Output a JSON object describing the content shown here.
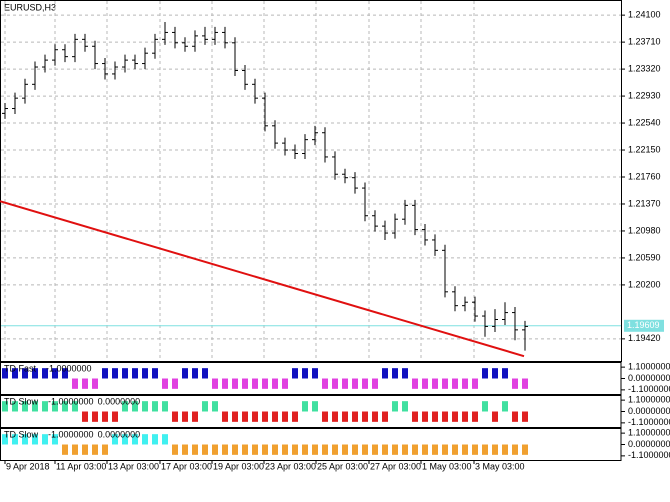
{
  "chart_data": {
    "type": "ohlc",
    "title": "EURUSD,H3",
    "color": "#000000",
    "grid": true,
    "open": [
      1.2268,
      1.2275,
      1.229,
      1.231,
      1.2335,
      1.2345,
      1.236,
      1.235,
      1.2375,
      1.2365,
      1.234,
      1.2325,
      1.2335,
      1.2345,
      1.234,
      1.2355,
      1.2375,
      1.2385,
      1.237,
      1.2365,
      1.238,
      1.2375,
      1.2385,
      1.237,
      1.233,
      1.231,
      1.229,
      1.225,
      1.2225,
      1.2215,
      1.221,
      1.223,
      1.224,
      1.2205,
      1.218,
      1.2175,
      1.216,
      1.212,
      1.2105,
      1.2095,
      1.2115,
      1.2135,
      1.21,
      1.2085,
      1.207,
      1.201,
      1.199,
      1.1995,
      1.1975,
      1.196,
      1.197,
      1.198,
      1.1955
    ],
    "high": [
      1.2283,
      1.2298,
      1.2318,
      1.2343,
      1.2353,
      1.2368,
      1.2368,
      1.2383,
      1.2383,
      1.2373,
      1.2348,
      1.2343,
      1.2353,
      1.2353,
      1.2363,
      1.2383,
      1.24,
      1.2393,
      1.2378,
      1.2388,
      1.2393,
      1.2393,
      1.2393,
      1.2378,
      1.2338,
      1.2318,
      1.2298,
      1.2258,
      1.2233,
      1.2223,
      1.2238,
      1.225,
      1.2248,
      1.2213,
      1.2188,
      1.2183,
      1.2168,
      1.2128,
      1.2113,
      1.2123,
      1.2143,
      1.2143,
      1.2108,
      1.2093,
      1.2078,
      1.2018,
      1.2003,
      1.2003,
      1.1983,
      1.1985,
      1.1995,
      1.1988,
      1.1968
    ],
    "low": [
      1.226,
      1.2267,
      1.2282,
      1.2302,
      1.2327,
      1.2337,
      1.2342,
      1.2342,
      1.2357,
      1.2332,
      1.2317,
      1.2317,
      1.2327,
      1.2332,
      1.2332,
      1.2347,
      1.2367,
      1.2362,
      1.2357,
      1.2357,
      1.2367,
      1.2367,
      1.2362,
      1.2322,
      1.2302,
      1.2282,
      1.2242,
      1.2217,
      1.2207,
      1.2202,
      1.2202,
      1.2222,
      1.2197,
      1.2172,
      1.2167,
      1.2152,
      1.2112,
      1.2097,
      1.2085,
      1.2087,
      1.2107,
      1.2092,
      1.2077,
      1.2062,
      1.2002,
      1.1982,
      1.1982,
      1.1967,
      1.1945,
      1.1952,
      1.1962,
      1.194,
      1.1925
    ],
    "close": [
      1.2275,
      1.229,
      1.231,
      1.2335,
      1.2345,
      1.236,
      1.235,
      1.2375,
      1.2365,
      1.234,
      1.2325,
      1.2335,
      1.2345,
      1.234,
      1.2355,
      1.2375,
      1.2385,
      1.237,
      1.2365,
      1.238,
      1.2375,
      1.2385,
      1.237,
      1.233,
      1.231,
      1.229,
      1.225,
      1.2225,
      1.2215,
      1.221,
      1.223,
      1.224,
      1.2205,
      1.218,
      1.2175,
      1.216,
      1.212,
      1.2105,
      1.2095,
      1.2115,
      1.2135,
      1.21,
      1.2085,
      1.207,
      1.201,
      1.199,
      1.1995,
      1.1975,
      1.196,
      1.197,
      1.198,
      1.1955,
      1.196
    ],
    "xlim": [
      -0.5,
      61.2
    ],
    "xticks": [
      {
        "value": 0,
        "label": "9 Apr 2018"
      },
      {
        "value": 5,
        "label": "11 Apr 03:00"
      },
      {
        "value": 10.2,
        "label": "13 Apr 03:00"
      },
      {
        "value": 15.5,
        "label": "17 Apr 03:00"
      },
      {
        "value": 20.7,
        "label": "19 Apr 03:00"
      },
      {
        "value": 25.9,
        "label": "23 Apr 03:00"
      },
      {
        "value": 31.1,
        "label": "25 Apr 03:00"
      },
      {
        "value": 36.4,
        "label": "27 Apr 03:00"
      },
      {
        "value": 41.6,
        "label": "1 May 03:00"
      },
      {
        "value": 46.9,
        "label": "3 May 03:00"
      }
    ],
    "ylim": [
      1.191,
      1.2429
    ],
    "yticks": [
      {
        "value": 1.241,
        "label": "1.24100"
      },
      {
        "value": 1.2371,
        "label": "1.23710"
      },
      {
        "value": 1.2332,
        "label": "1.23320"
      },
      {
        "value": 1.2293,
        "label": "1.22930"
      },
      {
        "value": 1.2254,
        "label": "1.22540"
      },
      {
        "value": 1.2215,
        "label": "1.22150"
      },
      {
        "value": 1.2176,
        "label": "1.21760"
      },
      {
        "value": 1.2137,
        "label": "1.21370"
      },
      {
        "value": 1.2098,
        "label": "1.20980"
      },
      {
        "value": 1.2059,
        "label": "1.20590"
      },
      {
        "value": 1.202,
        "label": "1.20200"
      },
      {
        "value": 1.1942,
        "label": "1.19420"
      }
    ],
    "current_price": {
      "value": 1.19609,
      "label": "1.19609",
      "color": "#7fe0e0"
    },
    "trendline": {
      "x": [
        -0.5,
        51.9
      ],
      "y": [
        1.2141,
        1.1917
      ],
      "color": "#e01010"
    },
    "indicators": [
      {
        "label": "TD Fast",
        "readouts": [
          "-1.0000000"
        ],
        "up_color": "#1010c0",
        "down_color": "#e040e0",
        "ylim": [
          -1.5,
          1.5
        ],
        "yticks": [
          {
            "value": 1.1,
            "label": "1.1000000"
          },
          {
            "value": 0,
            "label": "0.0000000"
          },
          {
            "value": -1.1,
            "label": "-1.1000000"
          }
        ],
        "values": [
          1,
          1,
          1,
          1,
          1,
          1,
          1,
          -1,
          -1,
          -1,
          1,
          1,
          1,
          1,
          1,
          1,
          -1,
          -1,
          1,
          1,
          1,
          -1,
          -1,
          -1,
          -1,
          -1,
          -1,
          -1,
          -1,
          1,
          1,
          1,
          -1,
          -1,
          -1,
          -1,
          -1,
          -1,
          1,
          1,
          1,
          -1,
          -1,
          -1,
          -1,
          -1,
          -1,
          -1,
          1,
          1,
          1,
          -1,
          -1
        ]
      },
      {
        "label": "TD Slow",
        "readouts": [
          "-1.0000000",
          "0.0000000"
        ],
        "up_color": "#40e0a0",
        "down_color": "#e02020",
        "ylim": [
          -1.5,
          1.5
        ],
        "yticks": [
          {
            "value": 1.1,
            "label": "1.1000000"
          },
          {
            "value": 0,
            "label": "0.0000000"
          },
          {
            "value": -1.1,
            "label": "-1.1000000"
          }
        ],
        "values": [
          1,
          1,
          1,
          1,
          1,
          1,
          1,
          1,
          -1,
          -1,
          -1,
          -1,
          1,
          1,
          1,
          1,
          1,
          -1,
          -1,
          -1,
          1,
          1,
          -1,
          -1,
          -1,
          -1,
          -1,
          -1,
          -1,
          -1,
          1,
          1,
          -1,
          -1,
          -1,
          -1,
          -1,
          -1,
          -1,
          1,
          1,
          -1,
          -1,
          -1,
          -1,
          -1,
          -1,
          -1,
          1,
          -1,
          1,
          -1,
          -1
        ]
      },
      {
        "label": "TD Slow",
        "readouts": [
          "-1.0000000",
          "0.0000000"
        ],
        "up_color": "#40f0f0",
        "down_color": "#f0a030",
        "ylim": [
          -1.5,
          1.5
        ],
        "yticks": [
          {
            "value": 1.1,
            "label": "1.1000000"
          },
          {
            "value": 0,
            "label": "0.0000000"
          },
          {
            "value": -1.1,
            "label": "-1.1000000"
          }
        ],
        "values": [
          1,
          1,
          1,
          1,
          1,
          1,
          -1,
          -1,
          -1,
          -1,
          -1,
          1,
          1,
          1,
          1,
          1,
          1,
          -1,
          -1,
          -1,
          -1,
          -1,
          -1,
          -1,
          -1,
          -1,
          -1,
          -1,
          -1,
          -1,
          -1,
          -1,
          -1,
          -1,
          -1,
          -1,
          -1,
          -1,
          -1,
          -1,
          -1,
          -1,
          -1,
          -1,
          -1,
          -1,
          -1,
          -1,
          -1,
          -1,
          -1,
          -1,
          -1
        ]
      }
    ]
  }
}
